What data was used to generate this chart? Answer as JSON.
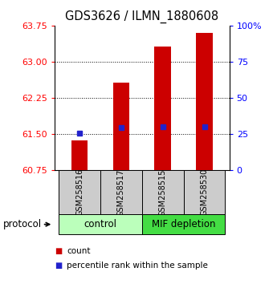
{
  "title": "GDS3626 / ILMN_1880608",
  "samples": [
    "GSM258516",
    "GSM258517",
    "GSM258515",
    "GSM258530"
  ],
  "bar_tops": [
    61.37,
    62.57,
    63.32,
    63.6
  ],
  "bar_bottom": 60.75,
  "percentile_values": [
    61.52,
    61.64,
    61.66,
    61.66
  ],
  "ylim_left": [
    60.75,
    63.75
  ],
  "ylim_right": [
    0,
    100
  ],
  "left_ticks": [
    60.75,
    61.5,
    62.25,
    63.0,
    63.75
  ],
  "right_ticks": [
    0,
    25,
    50,
    75,
    100
  ],
  "bar_color": "#cc0000",
  "blue_color": "#2222cc",
  "groups": [
    {
      "label": "control",
      "samples": [
        0,
        1
      ],
      "color": "#bbffbb"
    },
    {
      "label": "MIF depletion",
      "samples": [
        2,
        3
      ],
      "color": "#44dd44"
    }
  ],
  "group_bg_color": "#cccccc",
  "protocol_label": "protocol",
  "legend_count_label": "count",
  "legend_pct_label": "percentile rank within the sample"
}
